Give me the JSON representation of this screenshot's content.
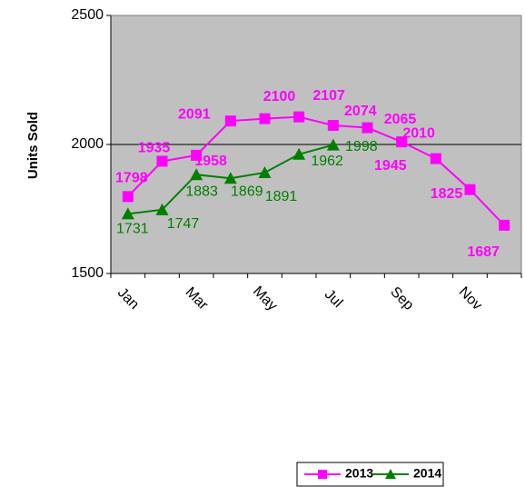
{
  "chart_data": {
    "type": "line",
    "y_label": "Units Sold",
    "categories": [
      "Jan",
      null,
      "Mar",
      null,
      "May",
      null,
      "Jul",
      null,
      "Sep",
      null,
      "Nov",
      null
    ],
    "series": [
      {
        "name": "2013",
        "color": "#ff00ff",
        "marker": "square",
        "values": [
          1798,
          1935,
          1958,
          2091,
          2100,
          2107,
          2074,
          2065,
          2010,
          1945,
          1825,
          1687
        ]
      },
      {
        "name": "2014",
        "color": "#008000",
        "marker": "triangle",
        "values": [
          1731,
          1747,
          1883,
          1869,
          1891,
          1962,
          1998,
          null,
          null,
          null,
          null,
          null
        ]
      }
    ],
    "ylim": [
      1500,
      2500
    ],
    "yticks": [
      1500,
      2000,
      2500
    ],
    "grid": true,
    "legend": "bottom"
  }
}
